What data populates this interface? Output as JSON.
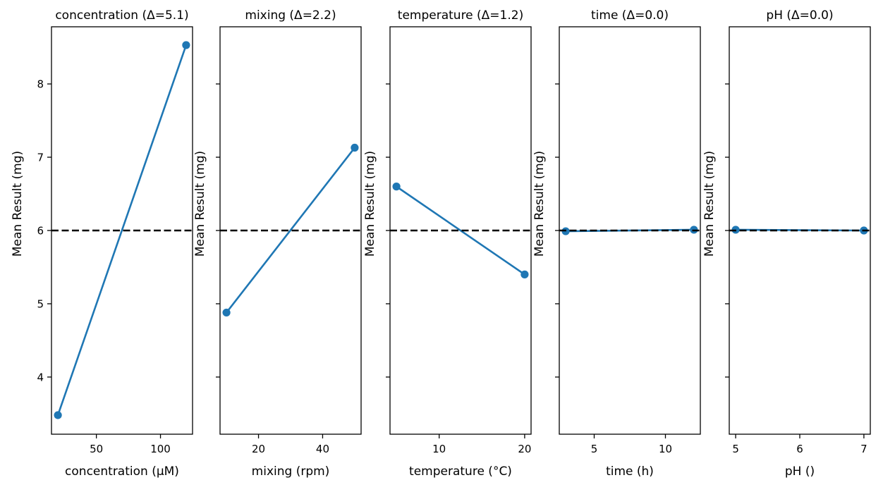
{
  "chart_data": [
    {
      "type": "line",
      "title": "concentration (Δ=5.1)",
      "xlabel": "concentration (µM)",
      "ylabel": "Mean Result (mg)",
      "x": [
        20,
        120
      ],
      "y": [
        3.48,
        8.53
      ],
      "xlim": [
        15,
        125
      ],
      "ylim": [
        3.22,
        8.78
      ],
      "xticks": [
        50,
        100
      ],
      "xtick_labels": [
        "50",
        "100"
      ],
      "yticks": [
        4,
        5,
        6,
        7,
        8
      ],
      "ytick_labels": [
        "4",
        "5",
        "6",
        "7",
        "8"
      ],
      "show_ytick_labels": true,
      "reference_line": 6.0,
      "grid": false
    },
    {
      "type": "line",
      "title": "mixing (Δ=2.2)",
      "xlabel": "mixing (rpm)",
      "ylabel": "Mean Result (mg)",
      "x": [
        10,
        50
      ],
      "y": [
        4.88,
        7.13
      ],
      "xlim": [
        8,
        52
      ],
      "ylim": [
        3.22,
        8.78
      ],
      "xticks": [
        20,
        40
      ],
      "xtick_labels": [
        "20",
        "40"
      ],
      "yticks": [
        4,
        5,
        6,
        7,
        8
      ],
      "ytick_labels": [
        "4",
        "5",
        "6",
        "7",
        "8"
      ],
      "show_ytick_labels": false,
      "reference_line": 6.0,
      "grid": false
    },
    {
      "type": "line",
      "title": "temperature (Δ=1.2)",
      "xlabel": "temperature (°C)",
      "ylabel": "Mean Result (mg)",
      "x": [
        5,
        20
      ],
      "y": [
        6.6,
        5.4
      ],
      "xlim": [
        4.25,
        20.75
      ],
      "ylim": [
        3.22,
        8.78
      ],
      "xticks": [
        10,
        20
      ],
      "xtick_labels": [
        "10",
        "20"
      ],
      "yticks": [
        4,
        5,
        6,
        7,
        8
      ],
      "ytick_labels": [
        "4",
        "5",
        "6",
        "7",
        "8"
      ],
      "show_ytick_labels": false,
      "reference_line": 6.0,
      "grid": false
    },
    {
      "type": "line",
      "title": "time (Δ=0.0)",
      "xlabel": "time (h)",
      "ylabel": "Mean Result (mg)",
      "x": [
        3,
        12
      ],
      "y": [
        5.99,
        6.01
      ],
      "xlim": [
        2.55,
        12.45
      ],
      "ylim": [
        3.22,
        8.78
      ],
      "xticks": [
        5,
        10
      ],
      "xtick_labels": [
        "5",
        "10"
      ],
      "yticks": [
        4,
        5,
        6,
        7,
        8
      ],
      "ytick_labels": [
        "4",
        "5",
        "6",
        "7",
        "8"
      ],
      "show_ytick_labels": false,
      "reference_line": 6.0,
      "grid": false
    },
    {
      "type": "line",
      "title": "pH (Δ=0.0)",
      "xlabel": "pH ()",
      "ylabel": "Mean Result (mg)",
      "x": [
        5,
        7
      ],
      "y": [
        6.01,
        6.0
      ],
      "xlim": [
        4.9,
        7.1
      ],
      "ylim": [
        3.22,
        8.78
      ],
      "xticks": [
        5,
        6,
        7
      ],
      "xtick_labels": [
        "5",
        "6",
        "7"
      ],
      "yticks": [
        4,
        5,
        6,
        7,
        8
      ],
      "ytick_labels": [
        "4",
        "5",
        "6",
        "7",
        "8"
      ],
      "show_ytick_labels": false,
      "reference_line": 6.0,
      "grid": false
    }
  ],
  "style": {
    "line_color": "#1f77b4",
    "reference_line_color": "#000000",
    "axes_color": "#000000"
  }
}
